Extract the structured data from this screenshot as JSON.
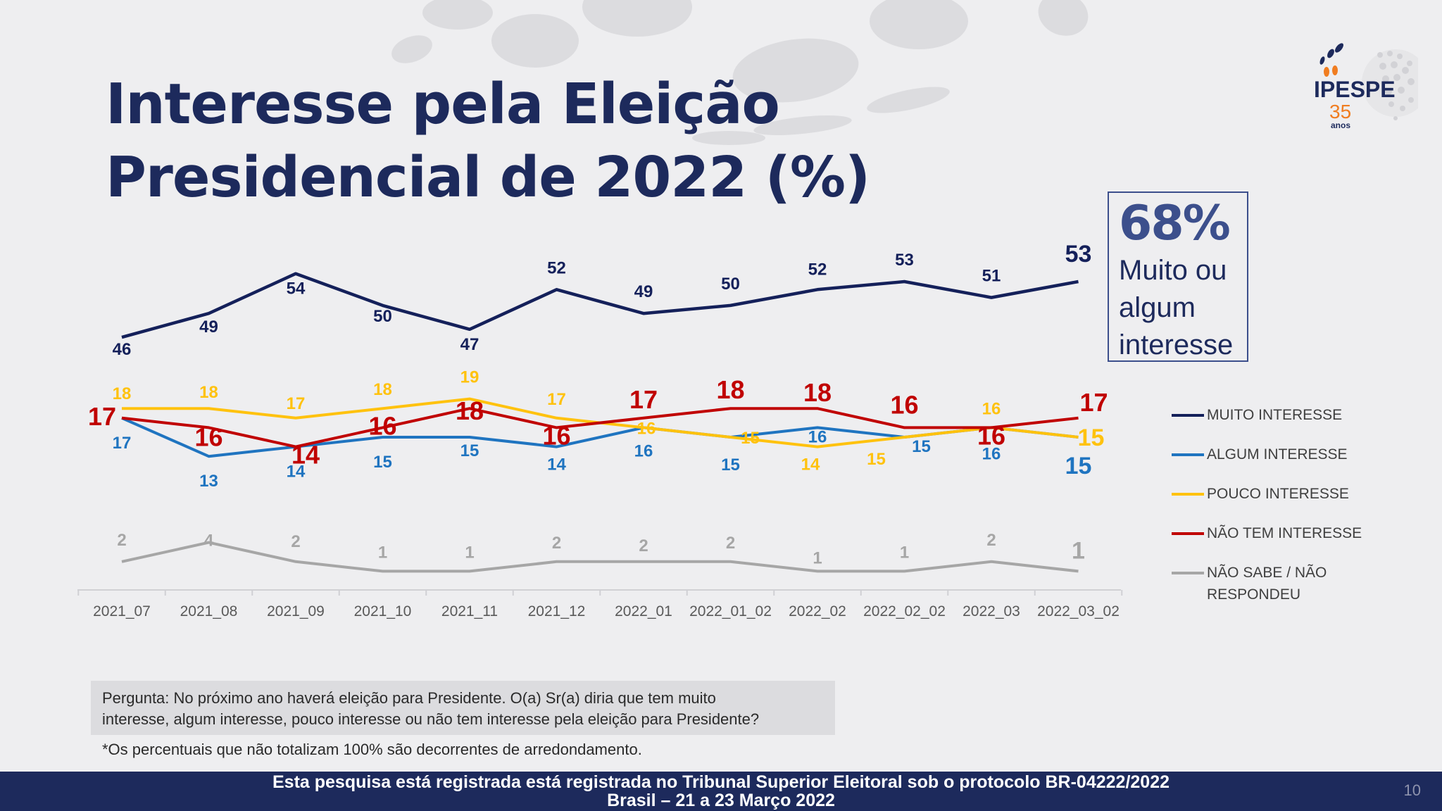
{
  "slide": {
    "title_line1": "Interesse pela Eleição",
    "title_line2": "Presidencial de 2022 (%)",
    "page_number": "10"
  },
  "logo": {
    "name": "IPESPE",
    "years": "35",
    "years_label": "anos"
  },
  "callout": {
    "percent": "68%",
    "caption_line1": "Muito ou",
    "caption_line2": "algum",
    "caption_line3": "interesse"
  },
  "question": {
    "line1": "Pergunta:  No próximo ano haverá eleição para Presidente. O(a) Sr(a) diria que tem muito",
    "line2": "interesse, algum interesse, pouco interesse ou não tem interesse pela eleição para Presidente?"
  },
  "footnote": "*Os percentuais que não totalizam 100% são decorrentes de arredondamento.",
  "footer": {
    "line1": "Esta pesquisa está registrada está registrada no Tribunal Superior Eleitoral sob o protocolo BR-04222/2022",
    "line2": "Brasil – 21 a 23 Março 2022"
  },
  "legend": [
    {
      "label": "MUITO INTERESSE",
      "color": "#14205a"
    },
    {
      "label": "ALGUM INTERESSE",
      "color": "#1f74c0"
    },
    {
      "label": "POUCO INTERESSE",
      "color": "#ffc20e"
    },
    {
      "label": "NÃO TEM INTERESSE",
      "color": "#c00000"
    },
    {
      "label": "NÃO SABE / NÃO\nRESPONDEU",
      "label_line1": "NÃO SABE / NÃO",
      "label_line2": "RESPONDEU",
      "color": "#a6a6a6"
    }
  ],
  "chart_data": {
    "type": "line",
    "title": "Interesse pela Eleição Presidencial de 2022 (%)",
    "xlabel": "",
    "ylabel": "",
    "categories": [
      "2021_07",
      "2021_08",
      "2021_09",
      "2021_10",
      "2021_11",
      "2021_12",
      "2022_01",
      "2022_01_02",
      "2022_02",
      "2022_02_02",
      "2022_03",
      "2022_03_02"
    ],
    "series": [
      {
        "name": "MUITO INTERESSE",
        "color": "#14205a",
        "values": [
          46,
          49,
          54,
          50,
          47,
          52,
          49,
          50,
          52,
          53,
          51,
          53
        ]
      },
      {
        "name": "ALGUM INTERESSE",
        "color": "#1f74c0",
        "values": [
          17,
          13,
          14,
          15,
          15,
          14,
          16,
          15,
          16,
          15,
          16,
          15
        ]
      },
      {
        "name": "POUCO INTERESSE",
        "color": "#ffc20e",
        "values": [
          18,
          18,
          17,
          18,
          19,
          17,
          16,
          15,
          14,
          15,
          16,
          15
        ]
      },
      {
        "name": "NÃO TEM INTERESSE",
        "color": "#c00000",
        "values": [
          17,
          16,
          14,
          16,
          18,
          16,
          17,
          18,
          18,
          16,
          16,
          17
        ]
      },
      {
        "name": "NÃO SABE / NÃO RESPONDEU",
        "color": "#a6a6a6",
        "values": [
          2,
          4,
          2,
          1,
          1,
          2,
          2,
          2,
          1,
          1,
          2,
          1
        ]
      }
    ],
    "legend_position": "right",
    "grid": false
  }
}
